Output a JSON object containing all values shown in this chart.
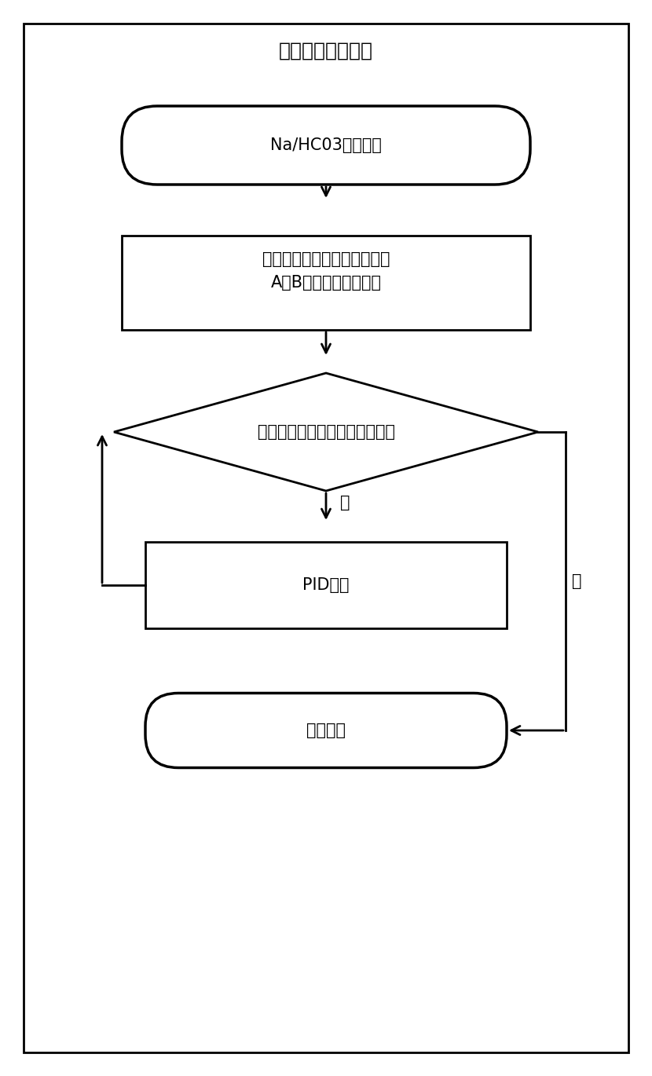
{
  "title": "离子设置控制过程",
  "box1_text": "Na/HC03设置完成",
  "box2_text": "根据配方查表获得当前离子下\nA、B泵值，下发给底层",
  "diamond_text": "电导值在理论电导值偏差范围内",
  "box3_text": "PID微调",
  "box4_text": "调节结束",
  "no_label": "否",
  "yes_label": "是",
  "bg_color": "#ffffff",
  "border_color": "#000000",
  "text_color": "#000000",
  "line_color": "#000000",
  "title_fontsize": 18,
  "text_fontsize": 15
}
